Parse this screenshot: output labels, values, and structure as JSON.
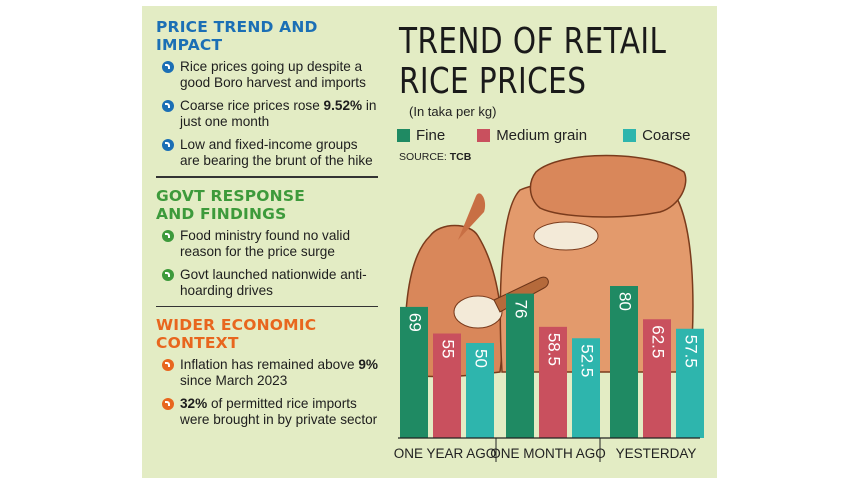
{
  "left_panel": {
    "sections": [
      {
        "heading": "PRICE TREND AND IMPACT",
        "color": "#1b6fb5",
        "items": [
          {
            "pre": "Rice prices going up despite a good Boro harvest and imports",
            "bold": "",
            "post": ""
          },
          {
            "pre": "Coarse rice prices rose ",
            "bold": "9.52%",
            "post": " in just one month"
          },
          {
            "pre": "Low and fixed-income groups are bearing the brunt of the hike",
            "bold": "",
            "post": ""
          }
        ]
      },
      {
        "heading": "GOVT RESPONSE AND FINDINGS",
        "color": "#3d9a3b",
        "items": [
          {
            "pre": "Food ministry found no valid reason for the price surge",
            "bold": "",
            "post": ""
          },
          {
            "pre": "Govt launched nationwide anti-hoarding drives",
            "bold": "",
            "post": ""
          }
        ]
      },
      {
        "heading": "WIDER ECONOMIC CONTEXT",
        "color": "#e8661e",
        "items": [
          {
            "pre": "Inflation has remained above ",
            "bold": "9%",
            "post": " since March 2023"
          },
          {
            "pre": "",
            "bold": "32%",
            "post": " of permitted rice imports were brought in by private sector"
          }
        ]
      }
    ]
  },
  "chart_data": {
    "type": "bar",
    "title": "TREND OF RETAIL RICE PRICES",
    "title_lines": [
      "TREND OF RETAIL",
      "RICE PRICES"
    ],
    "subtitle": "(In taka per kg)",
    "source_label": "SOURCE:",
    "source_value": "TCB",
    "categories": [
      "ONE YEAR AGO",
      "ONE MONTH AGO",
      "YESTERDAY"
    ],
    "series": [
      {
        "name": "Fine",
        "color": "#1f8a63",
        "values": [
          69,
          76,
          80
        ],
        "labels": [
          "69",
          "76",
          "80"
        ]
      },
      {
        "name": "Medium grain",
        "color": "#c9505e",
        "values": [
          55,
          58.5,
          62.5
        ],
        "labels": [
          "55",
          "58.5",
          "62.5"
        ]
      },
      {
        "name": "Coarse",
        "color": "#2eb5ad",
        "values": [
          50,
          52.5,
          57.5
        ],
        "labels": [
          "50",
          "52.5",
          "57.5"
        ]
      }
    ],
    "grid": false,
    "legend_position": "top"
  },
  "colors": {
    "panel_background": "#e3ecc4",
    "sack": "#d9875a"
  }
}
